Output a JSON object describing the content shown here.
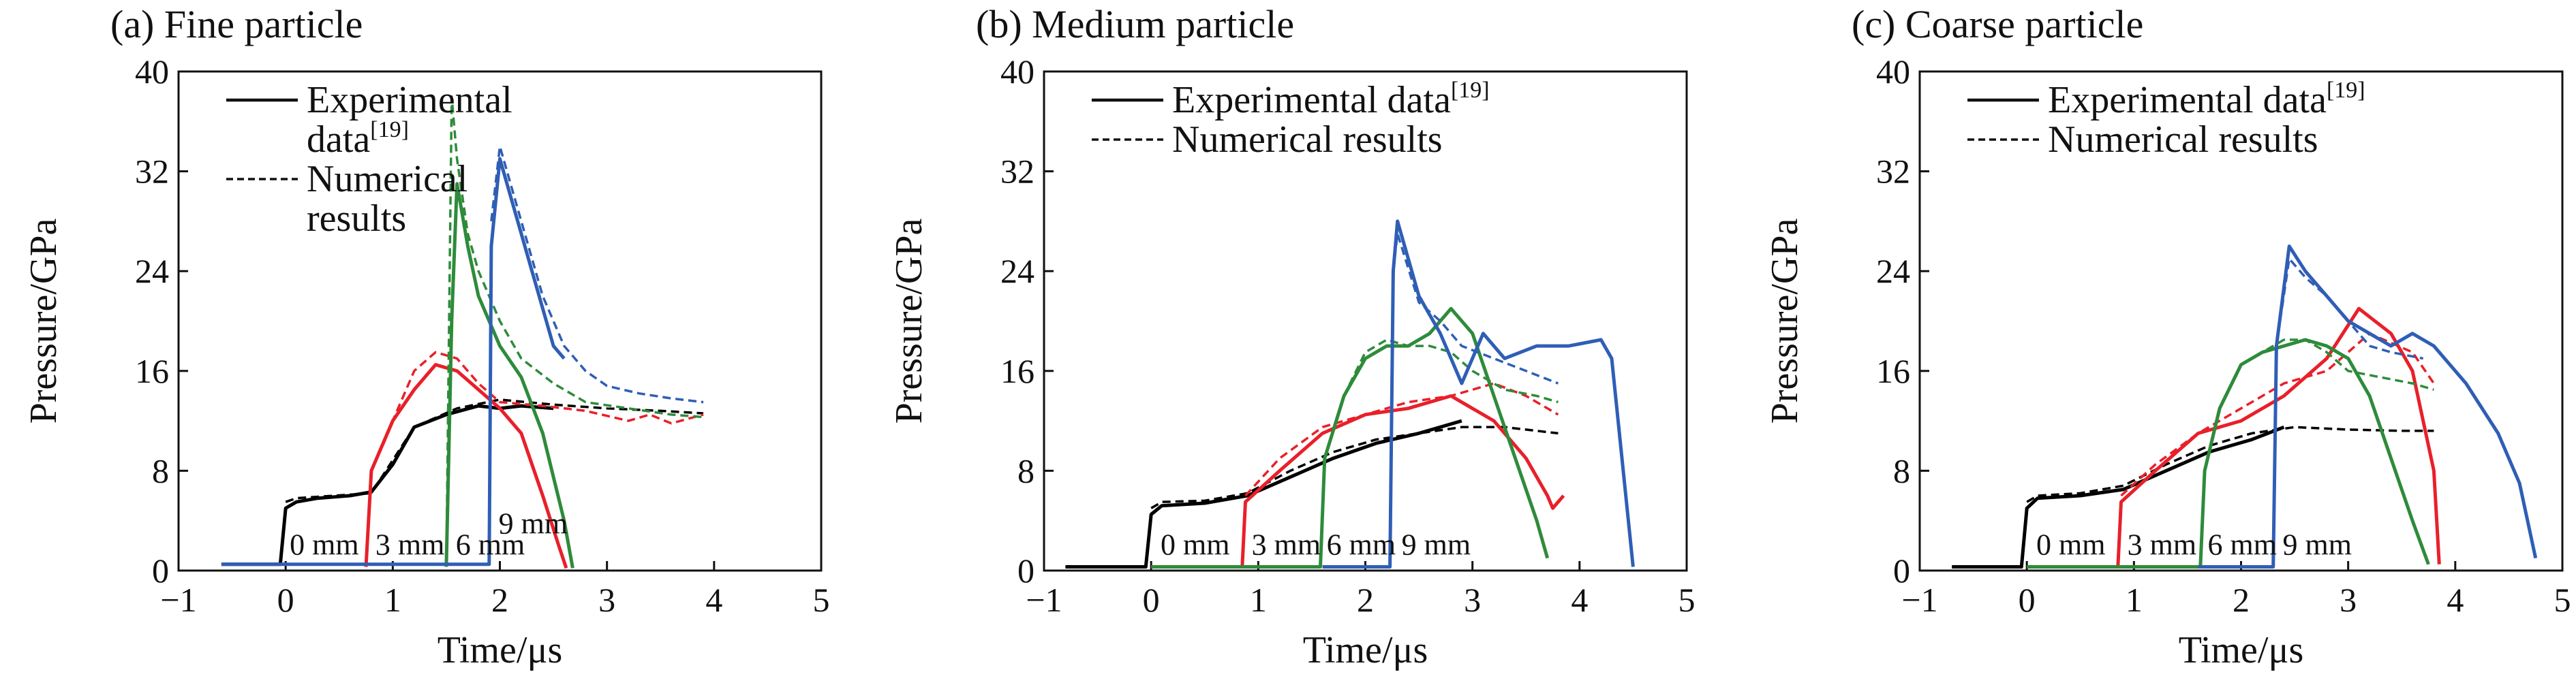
{
  "chart_data": [
    {
      "type": "line",
      "title": "(a) Fine particle",
      "xlabel": "Time/μs",
      "ylabel": "Pressure/GPa",
      "xlim": [
        -1,
        5
      ],
      "ylim": [
        0,
        40
      ],
      "xticks": [
        "−1",
        "0",
        "1",
        "2",
        "3",
        "4",
        "5"
      ],
      "yticks": [
        "0",
        "8",
        "16",
        "24",
        "32",
        "40"
      ],
      "legend_position": "top-left",
      "legend": [
        {
          "label_lines": [
            "Experimental",
            "data"
          ],
          "sup": "[19]",
          "style": "solid"
        },
        {
          "label_lines": [
            "Numerical",
            "results"
          ],
          "sup": "",
          "style": "dashed"
        }
      ],
      "gauge_labels": [
        {
          "text": "0 mm",
          "x": 0.0,
          "y": 1.5,
          "color": "#000000"
        },
        {
          "text": "3 mm",
          "x": 0.8,
          "y": 1.5,
          "color": "#e8202a"
        },
        {
          "text": "6 mm",
          "x": 1.55,
          "y": 1.5,
          "color": "#2e8b3a"
        },
        {
          "text": "9 mm",
          "x": 1.95,
          "y": 3.2,
          "color": "#2f5eb5"
        }
      ],
      "series": [
        {
          "name": "0 mm",
          "kind": "experimental",
          "color": "#000000",
          "dash": false,
          "x": [
            -0.6,
            -0.05,
            0.0,
            0.1,
            0.3,
            0.6,
            0.8,
            1.0,
            1.2,
            1.5,
            1.8,
            2.0,
            2.2,
            2.5
          ],
          "y": [
            0.5,
            0.5,
            5.0,
            5.5,
            5.8,
            6.0,
            6.3,
            8.5,
            11.5,
            12.5,
            13.2,
            13.0,
            13.2,
            13.0
          ]
        },
        {
          "name": "0 mm",
          "kind": "numerical",
          "color": "#000000",
          "dash": true,
          "x": [
            0.0,
            0.1,
            0.8,
            1.2,
            1.6,
            2.0,
            2.5,
            3.0,
            3.5,
            3.9
          ],
          "y": [
            5.5,
            5.8,
            6.2,
            11.5,
            13.0,
            13.7,
            13.3,
            13.0,
            12.8,
            12.6
          ]
        },
        {
          "name": "3 mm",
          "kind": "experimental",
          "color": "#e8202a",
          "dash": false,
          "x": [
            0.75,
            0.8,
            1.0,
            1.2,
            1.4,
            1.6,
            1.8,
            2.0,
            2.2,
            2.4,
            2.55,
            2.62
          ],
          "y": [
            0.3,
            8.0,
            12.0,
            14.5,
            16.5,
            16.0,
            14.5,
            13.0,
            11.0,
            6.0,
            2.0,
            0.2
          ]
        },
        {
          "name": "3 mm",
          "kind": "numerical",
          "color": "#e8202a",
          "dash": true,
          "x": [
            0.8,
            1.0,
            1.2,
            1.4,
            1.6,
            1.8,
            2.0,
            2.4,
            2.8,
            3.2,
            3.4,
            3.6,
            3.9
          ],
          "y": [
            8.0,
            12.0,
            16.0,
            17.5,
            17.0,
            15.0,
            13.5,
            13.2,
            12.8,
            12.0,
            12.5,
            11.8,
            12.5
          ]
        },
        {
          "name": "6 mm",
          "kind": "experimental",
          "color": "#2e8b3a",
          "dash": false,
          "x": [
            1.5,
            1.55,
            1.6,
            1.7,
            1.8,
            2.0,
            2.2,
            2.4,
            2.6,
            2.68
          ],
          "y": [
            0.3,
            20.0,
            31.0,
            26.0,
            22.0,
            18.0,
            15.5,
            11.0,
            4.0,
            0.2
          ]
        },
        {
          "name": "6 mm",
          "kind": "numerical",
          "color": "#2e8b3a",
          "dash": true,
          "x": [
            1.5,
            1.55,
            1.6,
            1.7,
            1.8,
            2.0,
            2.2,
            2.5,
            2.8,
            3.2,
            3.6,
            3.9
          ],
          "y": [
            0.3,
            38.0,
            33.0,
            27.0,
            24.0,
            20.0,
            17.0,
            15.0,
            13.5,
            13.0,
            12.5,
            12.3
          ]
        },
        {
          "name": "9 mm",
          "kind": "experimental",
          "color": "#2f5eb5",
          "dash": false,
          "x": [
            -0.6,
            1.85,
            1.9,
            1.92,
            2.0,
            2.1,
            2.2,
            2.3,
            2.4,
            2.5,
            2.6
          ],
          "y": [
            0.5,
            0.5,
            0.5,
            26.0,
            33.0,
            30.0,
            27.0,
            24.0,
            21.0,
            18.0,
            17.0
          ]
        },
        {
          "name": "9 mm",
          "kind": "numerical",
          "color": "#2f5eb5",
          "dash": true,
          "x": [
            1.92,
            2.0,
            2.2,
            2.4,
            2.6,
            2.8,
            3.0,
            3.3,
            3.6,
            3.9
          ],
          "y": [
            28.0,
            34.0,
            28.0,
            22.0,
            18.0,
            16.0,
            14.8,
            14.2,
            13.8,
            13.5
          ]
        }
      ]
    },
    {
      "type": "line",
      "title": "(b) Medium particle",
      "xlabel": "Time/μs",
      "ylabel": "Pressure/GPa",
      "xlim": [
        -1,
        5
      ],
      "ylim": [
        0,
        40
      ],
      "xticks": [
        "−1",
        "0",
        "1",
        "2",
        "3",
        "4",
        "5"
      ],
      "yticks": [
        "0",
        "8",
        "16",
        "24",
        "32",
        "40"
      ],
      "legend_position": "top-left",
      "legend": [
        {
          "label_lines": [
            "Experimental data"
          ],
          "sup": "[19]",
          "style": "solid"
        },
        {
          "label_lines": [
            "Numerical results"
          ],
          "sup": "",
          "style": "dashed"
        }
      ],
      "gauge_labels": [
        {
          "text": "0 mm",
          "x": 0.05,
          "y": 1.5,
          "color": "#000000"
        },
        {
          "text": "3 mm",
          "x": 0.9,
          "y": 1.5,
          "color": "#e8202a"
        },
        {
          "text": "6 mm",
          "x": 1.6,
          "y": 1.5,
          "color": "#2e8b3a"
        },
        {
          "text": "9 mm",
          "x": 2.3,
          "y": 1.5,
          "color": "#2f5eb5"
        }
      ],
      "series": [
        {
          "name": "0 mm",
          "kind": "experimental",
          "color": "#000000",
          "dash": false,
          "x": [
            -0.8,
            -0.05,
            0.0,
            0.1,
            0.5,
            0.9,
            1.3,
            1.7,
            2.1,
            2.5,
            2.9
          ],
          "y": [
            0.3,
            0.3,
            4.5,
            5.2,
            5.4,
            6.0,
            7.5,
            9.0,
            10.2,
            11.0,
            12.0
          ]
        },
        {
          "name": "0 mm",
          "kind": "numerical",
          "color": "#000000",
          "dash": true,
          "x": [
            0.0,
            0.1,
            0.5,
            0.9,
            1.3,
            1.7,
            2.1,
            2.5,
            2.9,
            3.3,
            3.8
          ],
          "y": [
            5.0,
            5.5,
            5.6,
            6.2,
            8.0,
            9.5,
            10.5,
            11.0,
            11.5,
            11.5,
            11.0
          ]
        },
        {
          "name": "3 mm",
          "kind": "experimental",
          "color": "#e8202a",
          "dash": false,
          "x": [
            0.0,
            0.85,
            0.88,
            1.2,
            1.6,
            2.0,
            2.4,
            2.8,
            3.2,
            3.5,
            3.7,
            3.75,
            3.85
          ],
          "y": [
            0.3,
            0.3,
            5.5,
            8.0,
            11.0,
            12.5,
            13.0,
            14.0,
            12.0,
            9.0,
            6.0,
            5.0,
            6.0
          ]
        },
        {
          "name": "3 mm",
          "kind": "numerical",
          "color": "#e8202a",
          "dash": true,
          "x": [
            0.88,
            1.2,
            1.6,
            2.0,
            2.4,
            2.8,
            3.2,
            3.5,
            3.8
          ],
          "y": [
            6.0,
            9.0,
            11.5,
            12.5,
            13.5,
            14.0,
            15.0,
            14.0,
            12.5
          ]
        },
        {
          "name": "6 mm",
          "kind": "experimental",
          "color": "#2e8b3a",
          "dash": false,
          "x": [
            0.0,
            1.58,
            1.62,
            1.8,
            2.0,
            2.2,
            2.4,
            2.6,
            2.8,
            3.0,
            3.2,
            3.4,
            3.6,
            3.7
          ],
          "y": [
            0.3,
            0.3,
            9.0,
            14.0,
            17.0,
            18.0,
            18.0,
            19.0,
            21.0,
            19.0,
            14.0,
            9.0,
            4.0,
            1.0
          ]
        },
        {
          "name": "6 mm",
          "kind": "numerical",
          "color": "#2e8b3a",
          "dash": true,
          "x": [
            1.62,
            1.8,
            2.0,
            2.2,
            2.4,
            2.6,
            2.8,
            3.0,
            3.3,
            3.6,
            3.8
          ],
          "y": [
            9.0,
            14.0,
            17.5,
            18.5,
            18.0,
            18.0,
            17.5,
            16.0,
            14.5,
            14.0,
            13.5
          ]
        },
        {
          "name": "9 mm",
          "kind": "experimental",
          "color": "#2f5eb5",
          "dash": false,
          "x": [
            1.6,
            2.23,
            2.26,
            2.3,
            2.5,
            2.7,
            2.9,
            3.1,
            3.3,
            3.6,
            3.9,
            4.2,
            4.3,
            4.5
          ],
          "y": [
            0.3,
            0.3,
            24.0,
            28.0,
            22.0,
            19.0,
            15.0,
            19.0,
            17.0,
            18.0,
            18.0,
            18.5,
            17.0,
            0.3
          ]
        },
        {
          "name": "9 mm",
          "kind": "numerical",
          "color": "#2f5eb5",
          "dash": true,
          "x": [
            2.26,
            2.3,
            2.5,
            2.7,
            2.9,
            3.2,
            3.5,
            3.8
          ],
          "y": [
            24.0,
            27.0,
            21.5,
            20.0,
            18.0,
            17.0,
            16.0,
            15.0
          ]
        }
      ]
    },
    {
      "type": "line",
      "title": "(c) Coarse particle",
      "xlabel": "Time/μs",
      "ylabel": "Pressure/GPa",
      "xlim": [
        -1,
        5
      ],
      "ylim": [
        0,
        40
      ],
      "xticks": [
        "−1",
        "0",
        "1",
        "2",
        "3",
        "4",
        "5"
      ],
      "yticks": [
        "0",
        "8",
        "16",
        "24",
        "32",
        "40"
      ],
      "legend_position": "top-left",
      "legend": [
        {
          "label_lines": [
            "Experimental data"
          ],
          "sup": "[19]",
          "style": "solid"
        },
        {
          "label_lines": [
            "Numerical results"
          ],
          "sup": "",
          "style": "dashed"
        }
      ],
      "gauge_labels": [
        {
          "text": "0 mm",
          "x": 0.05,
          "y": 1.5,
          "color": "#000000"
        },
        {
          "text": "3 mm",
          "x": 0.9,
          "y": 1.5,
          "color": "#e8202a"
        },
        {
          "text": "6 mm",
          "x": 1.65,
          "y": 1.5,
          "color": "#2e8b3a"
        },
        {
          "text": "9 mm",
          "x": 2.35,
          "y": 1.5,
          "color": "#2f5eb5"
        }
      ],
      "series": [
        {
          "name": "0 mm",
          "kind": "experimental",
          "color": "#000000",
          "dash": false,
          "x": [
            -0.7,
            -0.05,
            0.0,
            0.1,
            0.5,
            0.9,
            1.3,
            1.7,
            2.1,
            2.4
          ],
          "y": [
            0.3,
            0.3,
            5.0,
            5.8,
            6.0,
            6.5,
            8.0,
            9.5,
            10.5,
            11.5
          ]
        },
        {
          "name": "0 mm",
          "kind": "numerical",
          "color": "#000000",
          "dash": true,
          "x": [
            0.0,
            0.1,
            0.5,
            0.9,
            1.3,
            1.7,
            2.1,
            2.5,
            3.0,
            3.5,
            3.8
          ],
          "y": [
            5.5,
            6.0,
            6.2,
            6.8,
            8.5,
            10.0,
            11.0,
            11.5,
            11.3,
            11.2,
            11.2
          ]
        },
        {
          "name": "3 mm",
          "kind": "experimental",
          "color": "#e8202a",
          "dash": false,
          "x": [
            0.0,
            0.85,
            0.88,
            1.2,
            1.6,
            2.0,
            2.4,
            2.8,
            3.1,
            3.4,
            3.6,
            3.8,
            3.85
          ],
          "y": [
            0.3,
            0.3,
            5.5,
            8.0,
            11.0,
            12.0,
            14.0,
            17.0,
            21.0,
            19.0,
            16.0,
            8.0,
            0.5
          ]
        },
        {
          "name": "3 mm",
          "kind": "numerical",
          "color": "#e8202a",
          "dash": true,
          "x": [
            0.88,
            1.2,
            1.6,
            2.0,
            2.4,
            2.8,
            3.2,
            3.6,
            3.8
          ],
          "y": [
            6.0,
            8.5,
            11.0,
            13.0,
            15.0,
            16.0,
            19.0,
            17.5,
            15.0
          ]
        },
        {
          "name": "6 mm",
          "kind": "experimental",
          "color": "#2e8b3a",
          "dash": false,
          "x": [
            0.0,
            1.62,
            1.66,
            1.8,
            2.0,
            2.2,
            2.4,
            2.6,
            2.8,
            3.0,
            3.2,
            3.4,
            3.6,
            3.75
          ],
          "y": [
            0.3,
            0.3,
            8.0,
            13.0,
            16.5,
            17.5,
            18.0,
            18.5,
            18.0,
            17.0,
            14.0,
            9.0,
            4.0,
            0.5
          ]
        },
        {
          "name": "6 mm",
          "kind": "numerical",
          "color": "#2e8b3a",
          "dash": true,
          "x": [
            1.66,
            1.8,
            2.0,
            2.2,
            2.4,
            2.6,
            2.8,
            3.0,
            3.3,
            3.6,
            3.8
          ],
          "y": [
            8.0,
            13.0,
            16.5,
            17.5,
            18.5,
            18.5,
            17.5,
            16.0,
            15.5,
            15.0,
            14.5
          ]
        },
        {
          "name": "9 mm",
          "kind": "experimental",
          "color": "#2f5eb5",
          "dash": false,
          "x": [
            1.6,
            2.3,
            2.33,
            2.45,
            2.6,
            2.8,
            3.0,
            3.2,
            3.4,
            3.6,
            3.8,
            4.1,
            4.4,
            4.6,
            4.75
          ],
          "y": [
            0.3,
            0.3,
            18.0,
            26.0,
            24.0,
            22.0,
            20.0,
            19.0,
            18.0,
            19.0,
            18.0,
            15.0,
            11.0,
            7.0,
            1.0
          ]
        },
        {
          "name": "9 mm",
          "kind": "numerical",
          "color": "#2f5eb5",
          "dash": true,
          "x": [
            2.33,
            2.45,
            2.6,
            2.8,
            3.0,
            3.2,
            3.4,
            3.7
          ],
          "y": [
            18.0,
            25.0,
            23.5,
            22.0,
            20.0,
            18.0,
            17.5,
            17.0
          ]
        }
      ]
    }
  ]
}
